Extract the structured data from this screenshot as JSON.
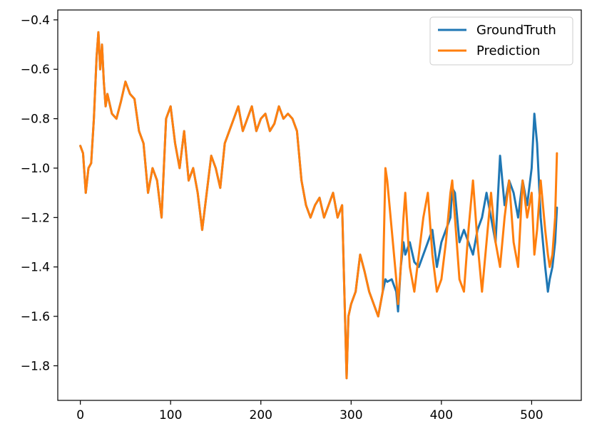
{
  "chart_data": {
    "type": "line",
    "title": "",
    "xlabel": "",
    "ylabel": "",
    "xlim": [
      -25,
      555
    ],
    "ylim": [
      -1.94,
      -0.36
    ],
    "xticks": [
      0,
      100,
      200,
      300,
      400,
      500
    ],
    "xtick_labels": [
      "0",
      "100",
      "200",
      "300",
      "400",
      "500"
    ],
    "yticks": [
      -1.8,
      -1.6,
      -1.4,
      -1.2,
      -1.0,
      -0.8,
      -0.6,
      -0.4
    ],
    "ytick_labels": [
      "−1.8",
      "−1.6",
      "−1.4",
      "−1.2",
      "−1.0",
      "−0.8",
      "−0.6",
      "−0.4"
    ],
    "grid": false,
    "legend_position": "upper right",
    "series": [
      {
        "name": "GroundTruth",
        "color": "#1f77b4",
        "x": [
          0,
          3,
          6,
          9,
          12,
          15,
          18,
          20,
          22,
          24,
          26,
          28,
          30,
          35,
          40,
          45,
          50,
          55,
          60,
          65,
          70,
          75,
          80,
          85,
          90,
          95,
          100,
          105,
          110,
          115,
          120,
          125,
          130,
          135,
          140,
          145,
          150,
          155,
          160,
          165,
          170,
          175,
          180,
          185,
          190,
          195,
          200,
          205,
          210,
          215,
          220,
          225,
          230,
          235,
          240,
          245,
          250,
          255,
          260,
          265,
          270,
          275,
          280,
          285,
          290,
          295,
          297,
          300,
          305,
          310,
          315,
          320,
          325,
          330,
          335,
          338,
          340,
          345,
          350,
          352,
          355,
          358,
          360,
          365,
          370,
          375,
          380,
          385,
          390,
          395,
          400,
          405,
          410,
          412,
          415,
          420,
          425,
          430,
          435,
          440,
          445,
          450,
          455,
          460,
          465,
          470,
          475,
          480,
          485,
          490,
          495,
          500,
          503,
          506,
          510,
          515,
          518,
          520,
          523,
          526,
          528
        ],
        "y": [
          -0.91,
          -0.94,
          -1.1,
          -1.0,
          -0.98,
          -0.8,
          -0.55,
          -0.45,
          -0.6,
          -0.5,
          -0.65,
          -0.75,
          -0.7,
          -0.78,
          -0.8,
          -0.73,
          -0.65,
          -0.7,
          -0.72,
          -0.85,
          -0.9,
          -1.1,
          -1.0,
          -1.05,
          -1.2,
          -0.8,
          -0.75,
          -0.9,
          -1.0,
          -0.85,
          -1.05,
          -1.0,
          -1.1,
          -1.25,
          -1.1,
          -0.95,
          -1.0,
          -1.08,
          -0.9,
          -0.85,
          -0.8,
          -0.75,
          -0.85,
          -0.8,
          -0.75,
          -0.85,
          -0.8,
          -0.78,
          -0.85,
          -0.82,
          -0.75,
          -0.8,
          -0.78,
          -0.8,
          -0.85,
          -1.05,
          -1.15,
          -1.2,
          -1.15,
          -1.12,
          -1.2,
          -1.15,
          -1.1,
          -1.2,
          -1.15,
          -1.85,
          -1.6,
          -1.55,
          -1.5,
          -1.35,
          -1.42,
          -1.5,
          -1.55,
          -1.6,
          -1.5,
          -1.45,
          -1.46,
          -1.45,
          -1.5,
          -1.58,
          -1.4,
          -1.3,
          -1.35,
          -1.3,
          -1.38,
          -1.4,
          -1.35,
          -1.3,
          -1.25,
          -1.4,
          -1.3,
          -1.25,
          -1.2,
          -1.08,
          -1.1,
          -1.3,
          -1.25,
          -1.3,
          -1.35,
          -1.25,
          -1.2,
          -1.1,
          -1.2,
          -1.3,
          -0.95,
          -1.15,
          -1.05,
          -1.1,
          -1.2,
          -1.05,
          -1.15,
          -1.0,
          -0.78,
          -0.9,
          -1.2,
          -1.4,
          -1.5,
          -1.45,
          -1.4,
          -1.3,
          -1.16
        ]
      },
      {
        "name": "Prediction",
        "color": "#ff7f0e",
        "x": [
          0,
          3,
          6,
          9,
          12,
          15,
          18,
          20,
          22,
          24,
          26,
          28,
          30,
          35,
          40,
          45,
          50,
          55,
          60,
          65,
          70,
          75,
          80,
          85,
          90,
          95,
          100,
          105,
          110,
          115,
          120,
          125,
          130,
          135,
          140,
          145,
          150,
          155,
          160,
          165,
          170,
          175,
          180,
          185,
          190,
          195,
          200,
          205,
          210,
          215,
          220,
          225,
          230,
          235,
          240,
          245,
          250,
          255,
          260,
          265,
          270,
          275,
          280,
          285,
          290,
          295,
          297,
          300,
          305,
          310,
          315,
          320,
          325,
          330,
          335,
          338,
          340,
          345,
          350,
          352,
          355,
          358,
          360,
          365,
          370,
          375,
          380,
          385,
          390,
          395,
          400,
          405,
          410,
          412,
          415,
          420,
          425,
          430,
          435,
          440,
          445,
          450,
          455,
          460,
          465,
          470,
          475,
          480,
          485,
          490,
          495,
          500,
          503,
          506,
          510,
          515,
          518,
          520,
          523,
          526,
          528
        ],
        "y": [
          -0.91,
          -0.94,
          -1.1,
          -1.0,
          -0.98,
          -0.8,
          -0.55,
          -0.45,
          -0.6,
          -0.5,
          -0.65,
          -0.75,
          -0.7,
          -0.78,
          -0.8,
          -0.73,
          -0.65,
          -0.7,
          -0.72,
          -0.85,
          -0.9,
          -1.1,
          -1.0,
          -1.05,
          -1.2,
          -0.8,
          -0.75,
          -0.9,
          -1.0,
          -0.85,
          -1.05,
          -1.0,
          -1.1,
          -1.25,
          -1.1,
          -0.95,
          -1.0,
          -1.08,
          -0.9,
          -0.85,
          -0.8,
          -0.75,
          -0.85,
          -0.8,
          -0.75,
          -0.85,
          -0.8,
          -0.78,
          -0.85,
          -0.82,
          -0.75,
          -0.8,
          -0.78,
          -0.8,
          -0.85,
          -1.05,
          -1.15,
          -1.2,
          -1.15,
          -1.12,
          -1.2,
          -1.15,
          -1.1,
          -1.2,
          -1.15,
          -1.85,
          -1.6,
          -1.55,
          -1.5,
          -1.35,
          -1.42,
          -1.5,
          -1.55,
          -1.6,
          -1.5,
          -1.0,
          -1.05,
          -1.25,
          -1.45,
          -1.55,
          -1.4,
          -1.2,
          -1.1,
          -1.4,
          -1.5,
          -1.35,
          -1.2,
          -1.1,
          -1.35,
          -1.5,
          -1.45,
          -1.3,
          -1.1,
          -1.05,
          -1.2,
          -1.45,
          -1.5,
          -1.25,
          -1.05,
          -1.3,
          -1.5,
          -1.3,
          -1.1,
          -1.3,
          -1.4,
          -1.2,
          -1.05,
          -1.3,
          -1.4,
          -1.05,
          -1.2,
          -1.1,
          -1.35,
          -1.25,
          -1.05,
          -1.25,
          -1.35,
          -1.4,
          -1.35,
          -1.2,
          -0.94
        ]
      }
    ]
  }
}
